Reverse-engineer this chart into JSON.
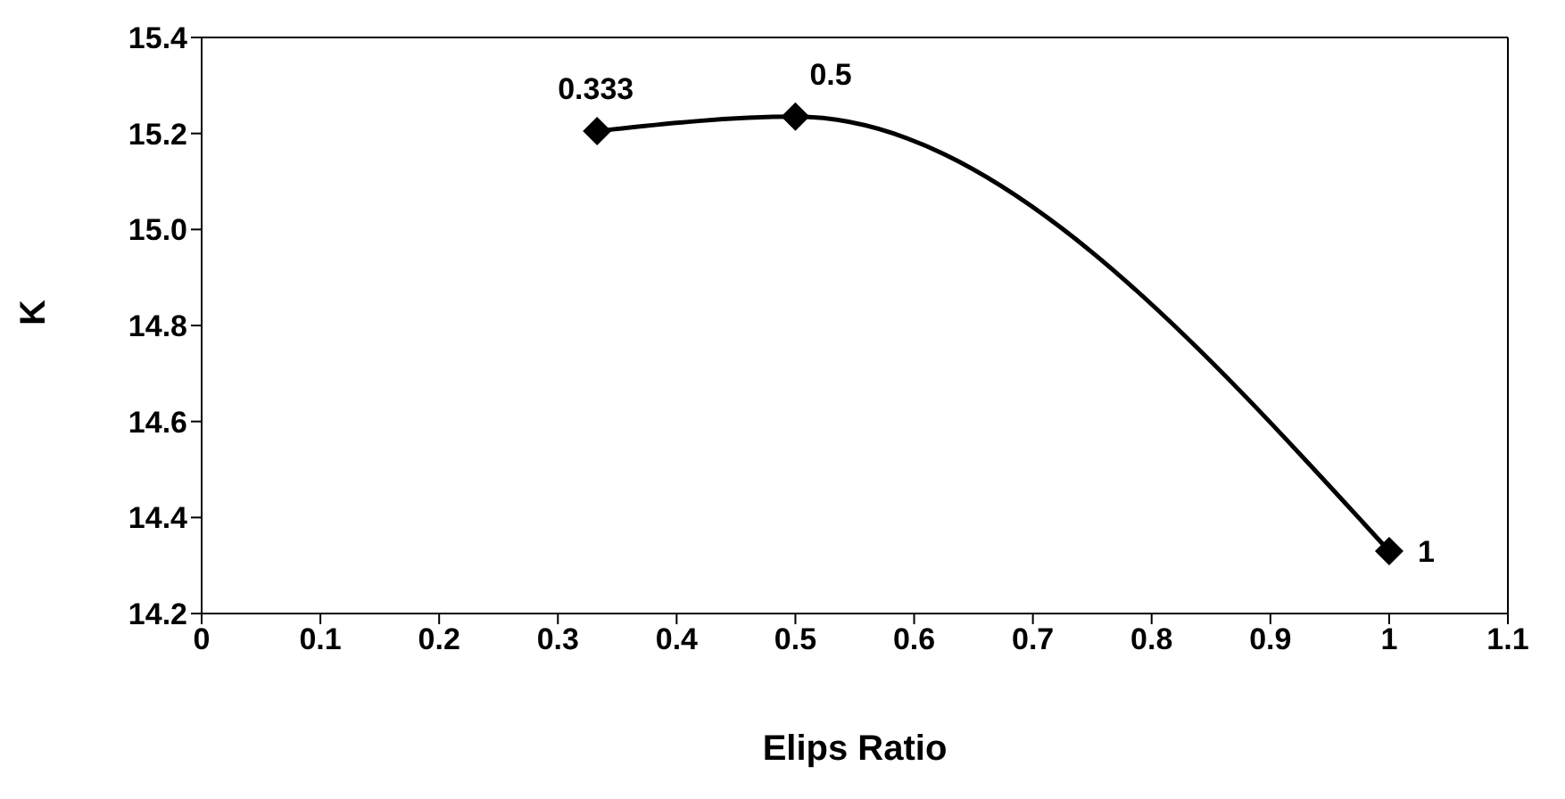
{
  "chart_data": {
    "type": "line",
    "xlabel": "Elips Ratio",
    "ylabel": "K",
    "x": [
      0.333,
      0.5,
      1
    ],
    "series": [
      {
        "color": "#000000",
        "values": [
          15.205,
          15.235,
          14.33
        ]
      }
    ],
    "annotations": [
      {
        "text": "0.333",
        "x": 0.333,
        "y": 15.205
      },
      {
        "text": "0.5",
        "x": 0.5,
        "y": 15.235
      },
      {
        "text": "1",
        "x": 1,
        "y": 14.33
      }
    ],
    "xlim": [
      0,
      1.1
    ],
    "xticks": [
      0,
      0.1,
      0.2,
      0.3,
      0.4,
      0.5,
      0.6,
      0.7,
      0.8,
      0.9,
      1,
      1.1
    ],
    "ylim": [
      14.2,
      15.4
    ],
    "yticks": [
      {
        "value": 14.2,
        "label": "14.2"
      },
      {
        "value": 14.4,
        "label": "14.4"
      },
      {
        "value": 14.6,
        "label": "14.6"
      },
      {
        "value": 14.8,
        "label": "14.8"
      },
      {
        "value": 15.0,
        "label": "15.0"
      },
      {
        "value": 15.2,
        "label": "15.2"
      },
      {
        "value": 15.4,
        "label": "15.4"
      }
    ],
    "grid": false,
    "legend": false,
    "marker": "diamond",
    "line_style": "solid"
  }
}
